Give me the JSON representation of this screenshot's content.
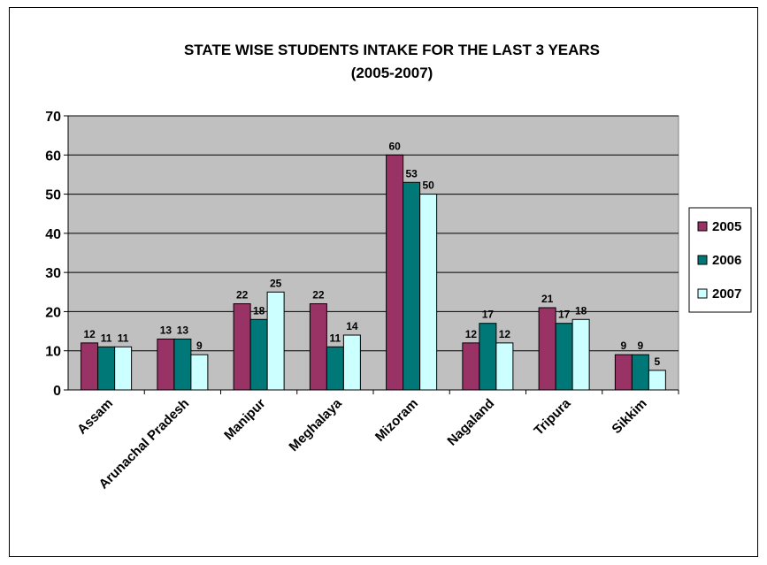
{
  "chart_data": {
    "type": "bar",
    "title_line1": "STATE WISE STUDENTS INTAKE FOR THE LAST 3 YEARS",
    "title_line2": "(2005-2007)",
    "categories": [
      "Assam",
      "Arunachal Pradesh",
      "Manipur",
      "Meghalaya",
      "Mizoram",
      "Nagaland",
      "Tripura",
      "Sikkim"
    ],
    "series": [
      {
        "name": "2005",
        "color": "#993366",
        "values": [
          12,
          13,
          22,
          22,
          60,
          12,
          21,
          9
        ]
      },
      {
        "name": "2006",
        "color": "#007878",
        "values": [
          11,
          13,
          18,
          11,
          53,
          17,
          17,
          9
        ]
      },
      {
        "name": "2007",
        "color": "#ccffff",
        "values": [
          11,
          9,
          25,
          14,
          50,
          12,
          18,
          5
        ]
      }
    ],
    "ylim": [
      0,
      70
    ],
    "yticks": [
      0,
      10,
      20,
      30,
      40,
      50,
      60,
      70
    ],
    "plot_background": "#c0c0c0",
    "grid": true,
    "legend_position": "right",
    "data_labels": true
  }
}
